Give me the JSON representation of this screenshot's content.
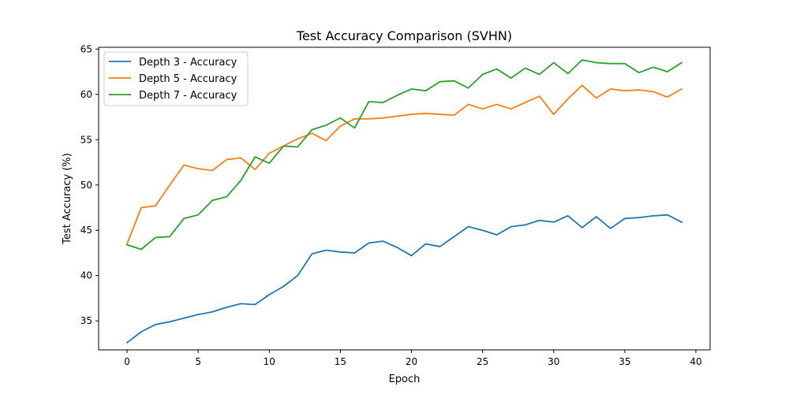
{
  "chart_data": {
    "type": "line",
    "title": "Test Accuracy Comparison (SVHN)",
    "xlabel": "Epoch",
    "ylabel": "Test Accuracy (%)",
    "xlim": [
      -2,
      41
    ],
    "ylim": [
      31.8,
      65.2
    ],
    "xticks": [
      0,
      5,
      10,
      15,
      20,
      25,
      30,
      35,
      40
    ],
    "yticks": [
      35,
      40,
      45,
      50,
      55,
      60,
      65
    ],
    "grid": false,
    "legend_position": "top-left",
    "x": [
      0,
      1,
      2,
      3,
      4,
      5,
      6,
      7,
      8,
      9,
      10,
      11,
      12,
      13,
      14,
      15,
      16,
      17,
      18,
      19,
      20,
      21,
      22,
      23,
      24,
      25,
      26,
      27,
      28,
      29,
      30,
      31,
      32,
      33,
      34,
      35,
      36,
      37,
      38,
      39
    ],
    "series": [
      {
        "name": "Depth 3 - Accuracy",
        "color": "#1f77b4",
        "values": [
          32.6,
          33.8,
          34.6,
          34.9,
          35.3,
          35.7,
          36.0,
          36.5,
          36.9,
          36.8,
          37.9,
          38.8,
          40.0,
          42.4,
          42.8,
          42.6,
          42.5,
          43.6,
          43.8,
          43.1,
          42.2,
          43.5,
          43.2,
          44.3,
          45.4,
          45.0,
          44.5,
          45.4,
          45.6,
          46.1,
          45.9,
          46.6,
          45.3,
          46.5,
          45.2,
          46.3,
          46.4,
          46.6,
          46.7,
          45.9
        ]
      },
      {
        "name": "Depth 5 - Accuracy",
        "color": "#ff7f0e",
        "values": [
          43.5,
          47.5,
          47.7,
          50.0,
          52.2,
          51.8,
          51.6,
          52.8,
          53.0,
          51.7,
          53.5,
          54.3,
          55.1,
          55.7,
          54.9,
          56.5,
          57.3,
          57.3,
          57.4,
          57.6,
          57.8,
          57.9,
          57.8,
          57.7,
          58.9,
          58.4,
          58.9,
          58.4,
          59.1,
          59.8,
          57.8,
          59.5,
          61.0,
          59.6,
          60.6,
          60.4,
          60.5,
          60.3,
          59.7,
          60.6
        ]
      },
      {
        "name": "Depth 7 - Accuracy",
        "color": "#2ca02c",
        "values": [
          43.4,
          42.9,
          44.2,
          44.3,
          46.3,
          46.7,
          48.3,
          48.7,
          50.5,
          53.1,
          52.4,
          54.3,
          54.2,
          56.1,
          56.6,
          57.4,
          56.3,
          59.2,
          59.1,
          59.9,
          60.6,
          60.4,
          61.4,
          61.5,
          60.7,
          62.2,
          62.8,
          61.8,
          62.9,
          62.2,
          63.5,
          62.3,
          63.8,
          63.5,
          63.4,
          63.4,
          62.4,
          63.0,
          62.5,
          63.5
        ]
      }
    ]
  }
}
